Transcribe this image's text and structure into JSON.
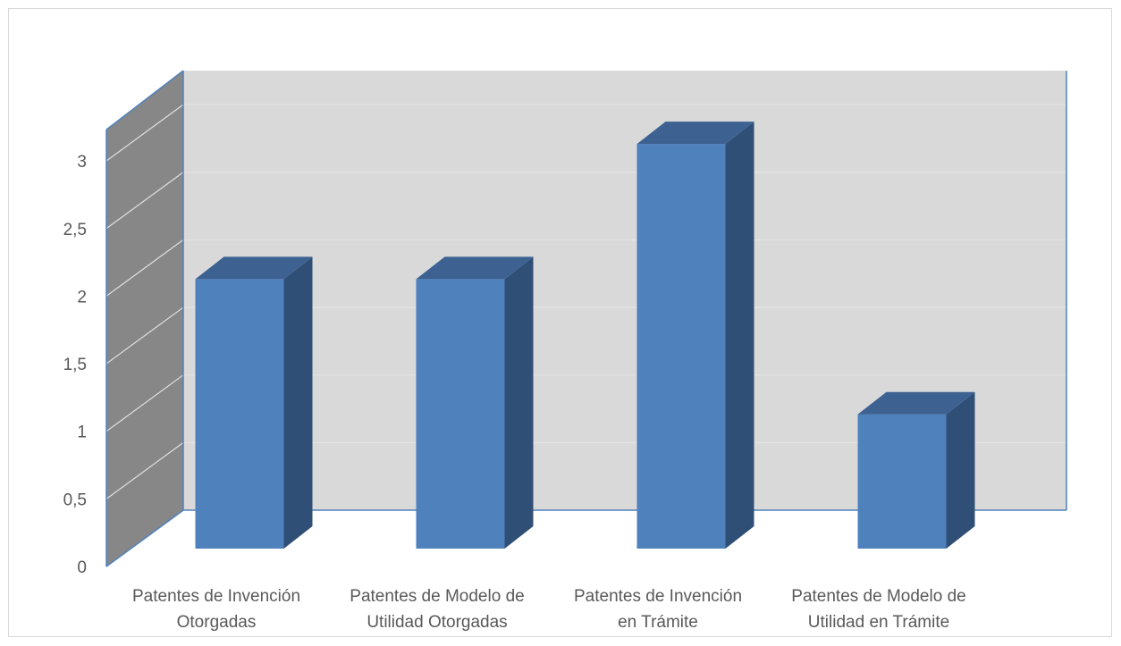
{
  "chart_data": {
    "type": "bar",
    "title": "",
    "xlabel": "",
    "ylabel": "",
    "categories": [
      [
        "Patentes de Invención",
        "Otorgadas"
      ],
      [
        "Patentes de Modelo de",
        "Utilidad Otorgadas"
      ],
      [
        "Patentes de Invención",
        "en Trámite"
      ],
      [
        "Patentes de Modelo de",
        "Utilidad en Trámite"
      ]
    ],
    "values": [
      2,
      2,
      3,
      1
    ],
    "ylim": [
      0,
      3
    ],
    "yticks": [
      "0",
      "0,5",
      "1",
      "1,5",
      "2",
      "2,5",
      "3"
    ],
    "grid": true,
    "legend": "none",
    "three_d": true,
    "colors": {
      "bar_front": "#4f81bd",
      "bar_side": "#2f4f76",
      "bar_top": "#3d6291",
      "back_wall": "#d9d9d9",
      "side_wall": "#878787",
      "axis": "#4f81bd",
      "grid_back": "#e6e6e6",
      "grid_side": "#e0e0e0"
    }
  }
}
